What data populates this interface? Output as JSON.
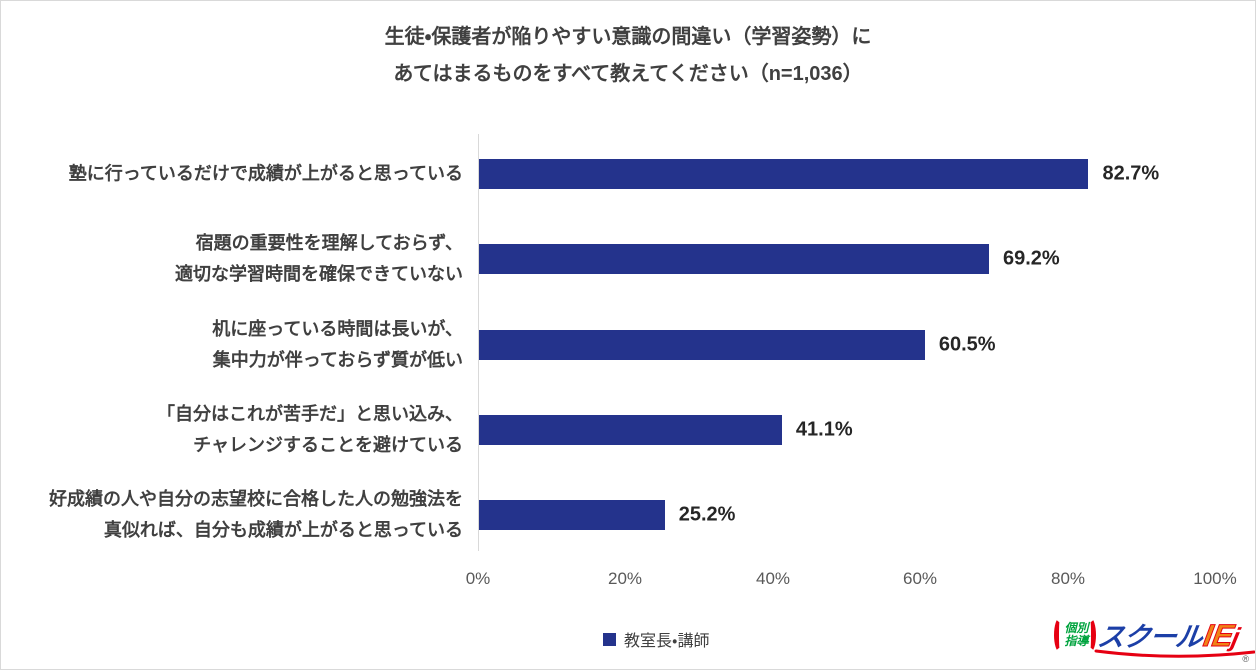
{
  "title": {
    "line1": "生徒・保護者が陥りやすい意識の間違い（学習姿勢）に",
    "line2": "あてはまるものをすべて教えてください（n=1,036）"
  },
  "chart_data": {
    "type": "bar",
    "orientation": "horizontal",
    "categories": [
      "塾に行っているだけで成績が上がると思っている",
      "宿題の重要性を理解しておらず、\n適切な学習時間を確保できていない",
      "机に座っている時間は長いが、\n集中力が伴っておらず質が低い",
      "「自分はこれが苦手だ」と思い込み、\nチャレンジすることを避けている",
      "好成績の人や自分の志望校に合格した人の勉強法を\n真似れば、自分も成績が上がると思っている"
    ],
    "values": [
      82.7,
      69.2,
      60.5,
      41.1,
      25.2
    ],
    "value_labels": [
      "82.7%",
      "69.2%",
      "60.5%",
      "41.1%",
      "25.2%"
    ],
    "x_ticks": [
      "0%",
      "20%",
      "40%",
      "60%",
      "80%",
      "100%"
    ],
    "xlim": [
      0,
      100
    ],
    "grid": false,
    "bar_color": "#24338c",
    "legend": {
      "label": "教室長・講師",
      "position": "bottom"
    }
  },
  "logo": {
    "badge_text": "個別\n指導",
    "name_part1": "スクール",
    "name_part2": "IE",
    "hook": "j",
    "reg_mark": "®",
    "colors": {
      "red": "#e60012",
      "green": "#00a33e",
      "blue": "#1c3fa7",
      "orange": "#f08316"
    }
  }
}
